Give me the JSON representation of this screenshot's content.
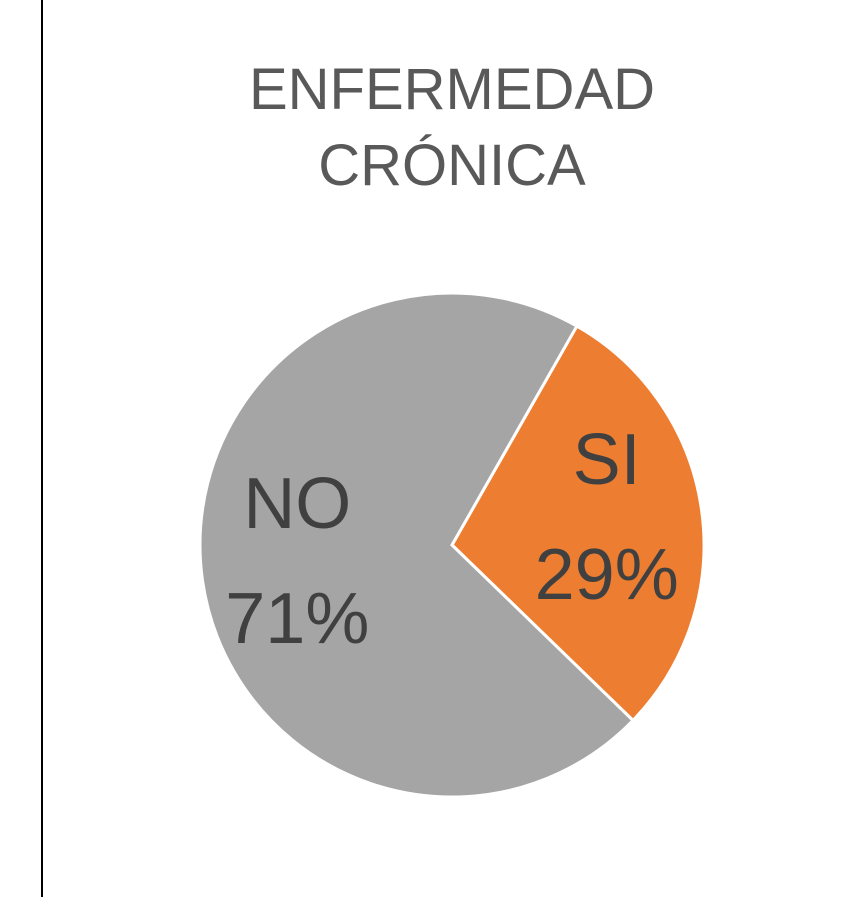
{
  "chart_data": {
    "type": "pie",
    "title": "ENFERMEDAD CRÓNICA",
    "categories": [
      "SI",
      "NO"
    ],
    "values": [
      29,
      71
    ],
    "value_labels": [
      "29%",
      "71%"
    ],
    "colors": [
      "#ed7d31",
      "#a5a5a5"
    ]
  }
}
